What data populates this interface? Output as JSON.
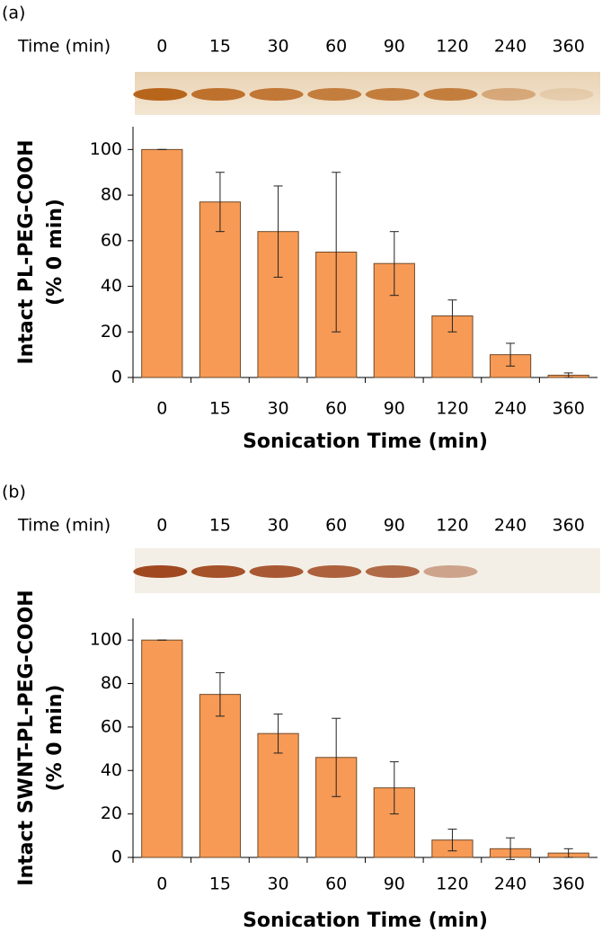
{
  "chart_data": [
    {
      "type": "bar",
      "panel_label": "(a)",
      "gel_title": "Time (min)",
      "ylabel": "Intact PL-PEG-COOH",
      "ylabel2": "(% 0 min)",
      "xlabel": "Sonication Time (min)",
      "categories": [
        "0",
        "15",
        "30",
        "60",
        "90",
        "120",
        "240",
        "360"
      ],
      "values": [
        100,
        77,
        64,
        55,
        50,
        27,
        10,
        1
      ],
      "errors": [
        0,
        13,
        20,
        35,
        14,
        7,
        5,
        1
      ],
      "color": "#f79a55",
      "ylim": [
        0,
        110
      ],
      "yticks": [
        0,
        20,
        40,
        60,
        80,
        100
      ]
    },
    {
      "type": "bar",
      "panel_label": "(b)",
      "gel_title": "Time (min)",
      "ylabel": "Intact SWNT-PL-PEG-COOH",
      "ylabel2": "(% 0 min)",
      "xlabel": "Sonication Time (min)",
      "categories": [
        "0",
        "15",
        "30",
        "60",
        "90",
        "120",
        "240",
        "360"
      ],
      "values": [
        100,
        75,
        57,
        46,
        32,
        8,
        4,
        2
      ],
      "errors": [
        0,
        10,
        9,
        18,
        12,
        5,
        5,
        2
      ],
      "color": "#f79a55",
      "ylim": [
        0,
        110
      ],
      "yticks": [
        0,
        20,
        40,
        60,
        80,
        100
      ]
    }
  ]
}
